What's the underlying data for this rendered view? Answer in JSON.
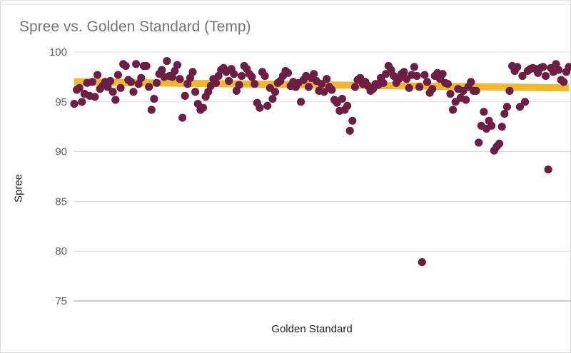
{
  "chart_data": {
    "type": "scatter",
    "title": "Spree vs. Golden Standard (Temp)",
    "xlabel": "Golden Standard",
    "ylabel": "Spree",
    "ylim": [
      75,
      100
    ],
    "yticks": [
      "75",
      "80",
      "85",
      "90",
      "95",
      "100"
    ],
    "grid": true,
    "legend": "none",
    "colors": {
      "points": "#6d1e45",
      "trendline": "#f1b82d",
      "grid": "#dcdcdc"
    },
    "series": [
      {
        "values": [
          94.8,
          96.2,
          96.4,
          95.0,
          95.8,
          96.9,
          95.6,
          97.0,
          95.5,
          97.7,
          96.3,
          96.6,
          97.0,
          96.5,
          97.1,
          96.0,
          95.2,
          97.7,
          96.4,
          98.8,
          98.6,
          97.2,
          97.0,
          96.0,
          98.8,
          96.8,
          97.4,
          98.6,
          98.6,
          96.5,
          94.2,
          95.3,
          96.9,
          97.8,
          98.2,
          97.5,
          99.1,
          97.6,
          97.5,
          98.1,
          98.7,
          97.3,
          93.4,
          95.6,
          96.8,
          97.4,
          98.0,
          96.0,
          94.8,
          94.2,
          94.4,
          95.5,
          96.0,
          96.6,
          97.3,
          96.9,
          97.6,
          98.2,
          98.4,
          98.0,
          97.1,
          98.3,
          97.8,
          96.1,
          96.7,
          97.6,
          98.6,
          98.3,
          97.8,
          97.5,
          96.8,
          94.9,
          94.4,
          98.0,
          97.6,
          94.6,
          96.4,
          95.3,
          96.0,
          96.9,
          97.1,
          97.6,
          98.1,
          97.9,
          96.6,
          97.0,
          96.5,
          96.9,
          95.0,
          97.2,
          97.6,
          96.5,
          97.4,
          97.8,
          97.1,
          96.1,
          96.8,
          96.0,
          97.3,
          96.5,
          96.2,
          95.2,
          94.9,
          94.1,
          95.3,
          94.2,
          94.6,
          92.1,
          93.1,
          96.5,
          97.2,
          97.4,
          96.8,
          97.0,
          96.6,
          96.1,
          96.3,
          96.8,
          96.7,
          97.4,
          96.9,
          97.8,
          98.6,
          98.2,
          97.6,
          96.9,
          97.3,
          97.8,
          98.0,
          97.3,
          96.4,
          97.7,
          98.5,
          97.6,
          96.5,
          78.9,
          97.7,
          97.0,
          95.9,
          96.3,
          97.6,
          97.9,
          97.3,
          97.8,
          96.9,
          96.8,
          95.8,
          94.2,
          95.0,
          96.3,
          95.4,
          96.1,
          95.2,
          96.5,
          97.0,
          96.1,
          96.1,
          90.9,
          92.6,
          94.0,
          92.3,
          93.1,
          92.6,
          90.1,
          90.5,
          90.8,
          92.5,
          93.8,
          94.5,
          96.1,
          98.6,
          98.1,
          98.5,
          94.5,
          97.6,
          95.0,
          98.1,
          98.3,
          98.4,
          98.3,
          97.9,
          98.4,
          98.5,
          97.6,
          88.2,
          98.4,
          98.0,
          98.8,
          98.2,
          97.2,
          97.0,
          98.0,
          98.5
        ]
      }
    ],
    "trendline": {
      "start": 97.0,
      "end": 96.4
    }
  }
}
